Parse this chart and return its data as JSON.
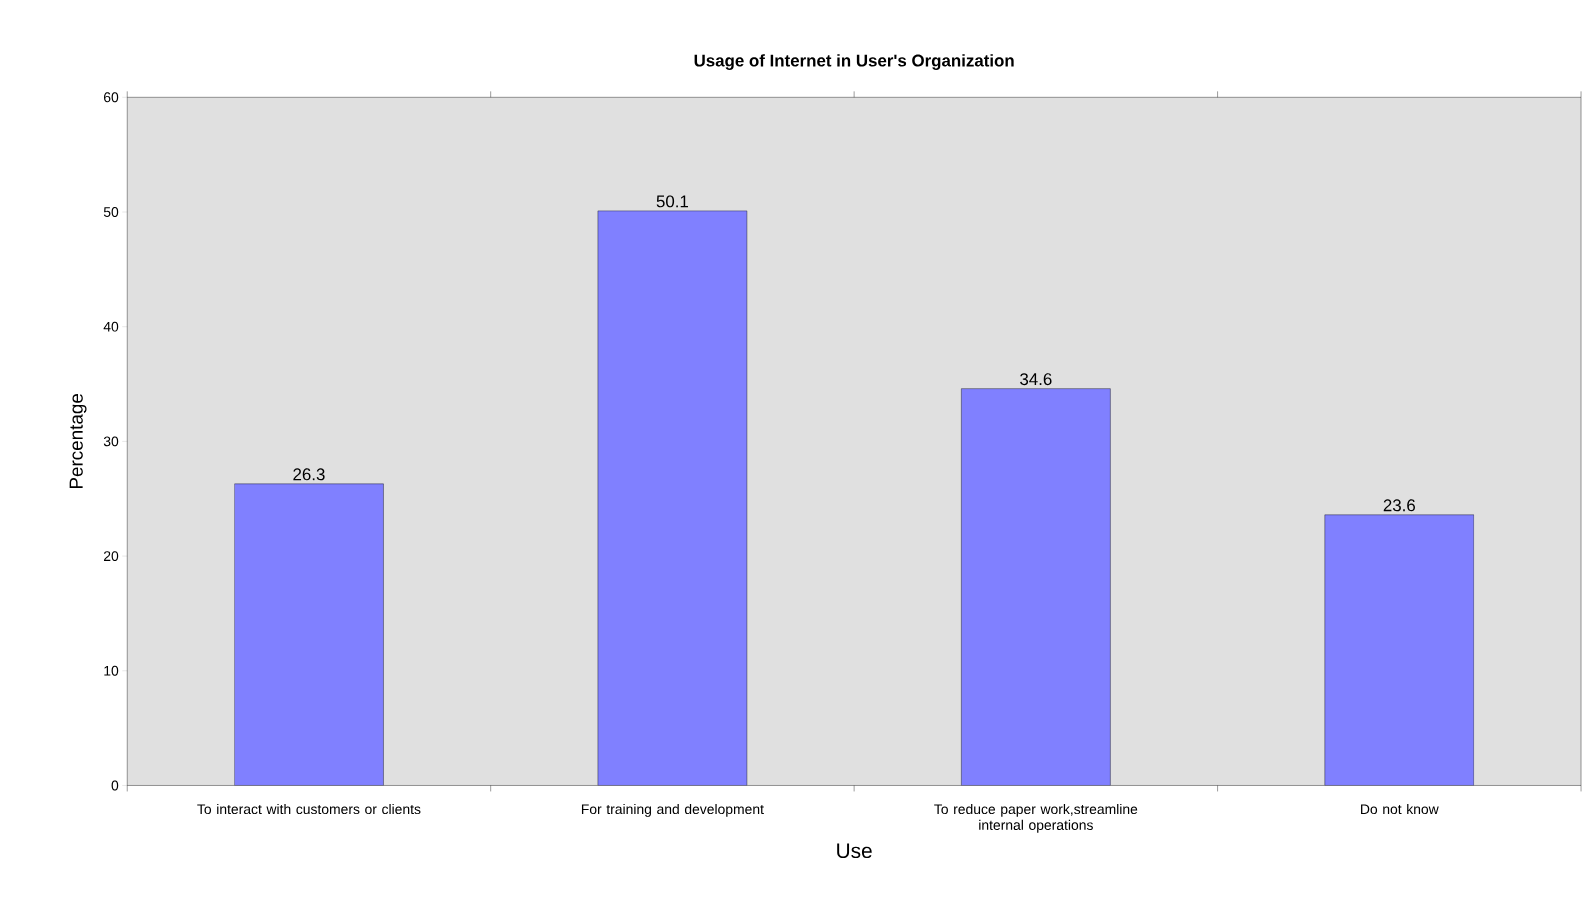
{
  "chart_data": {
    "type": "bar",
    "title": "Usage of Internet in User's Organization",
    "xlabel": "Use",
    "ylabel": "Percentage",
    "categories": [
      "To interact with customers or clients",
      "For training and development",
      "To reduce paper work,streamline internal operations",
      "Do not know"
    ],
    "values": [
      26.3,
      50.1,
      34.6,
      23.6
    ],
    "color": "#8080ff",
    "ylim": [
      0,
      60
    ],
    "yticks": [
      0,
      10,
      20,
      30,
      40,
      50,
      60
    ],
    "data_labels": true
  }
}
